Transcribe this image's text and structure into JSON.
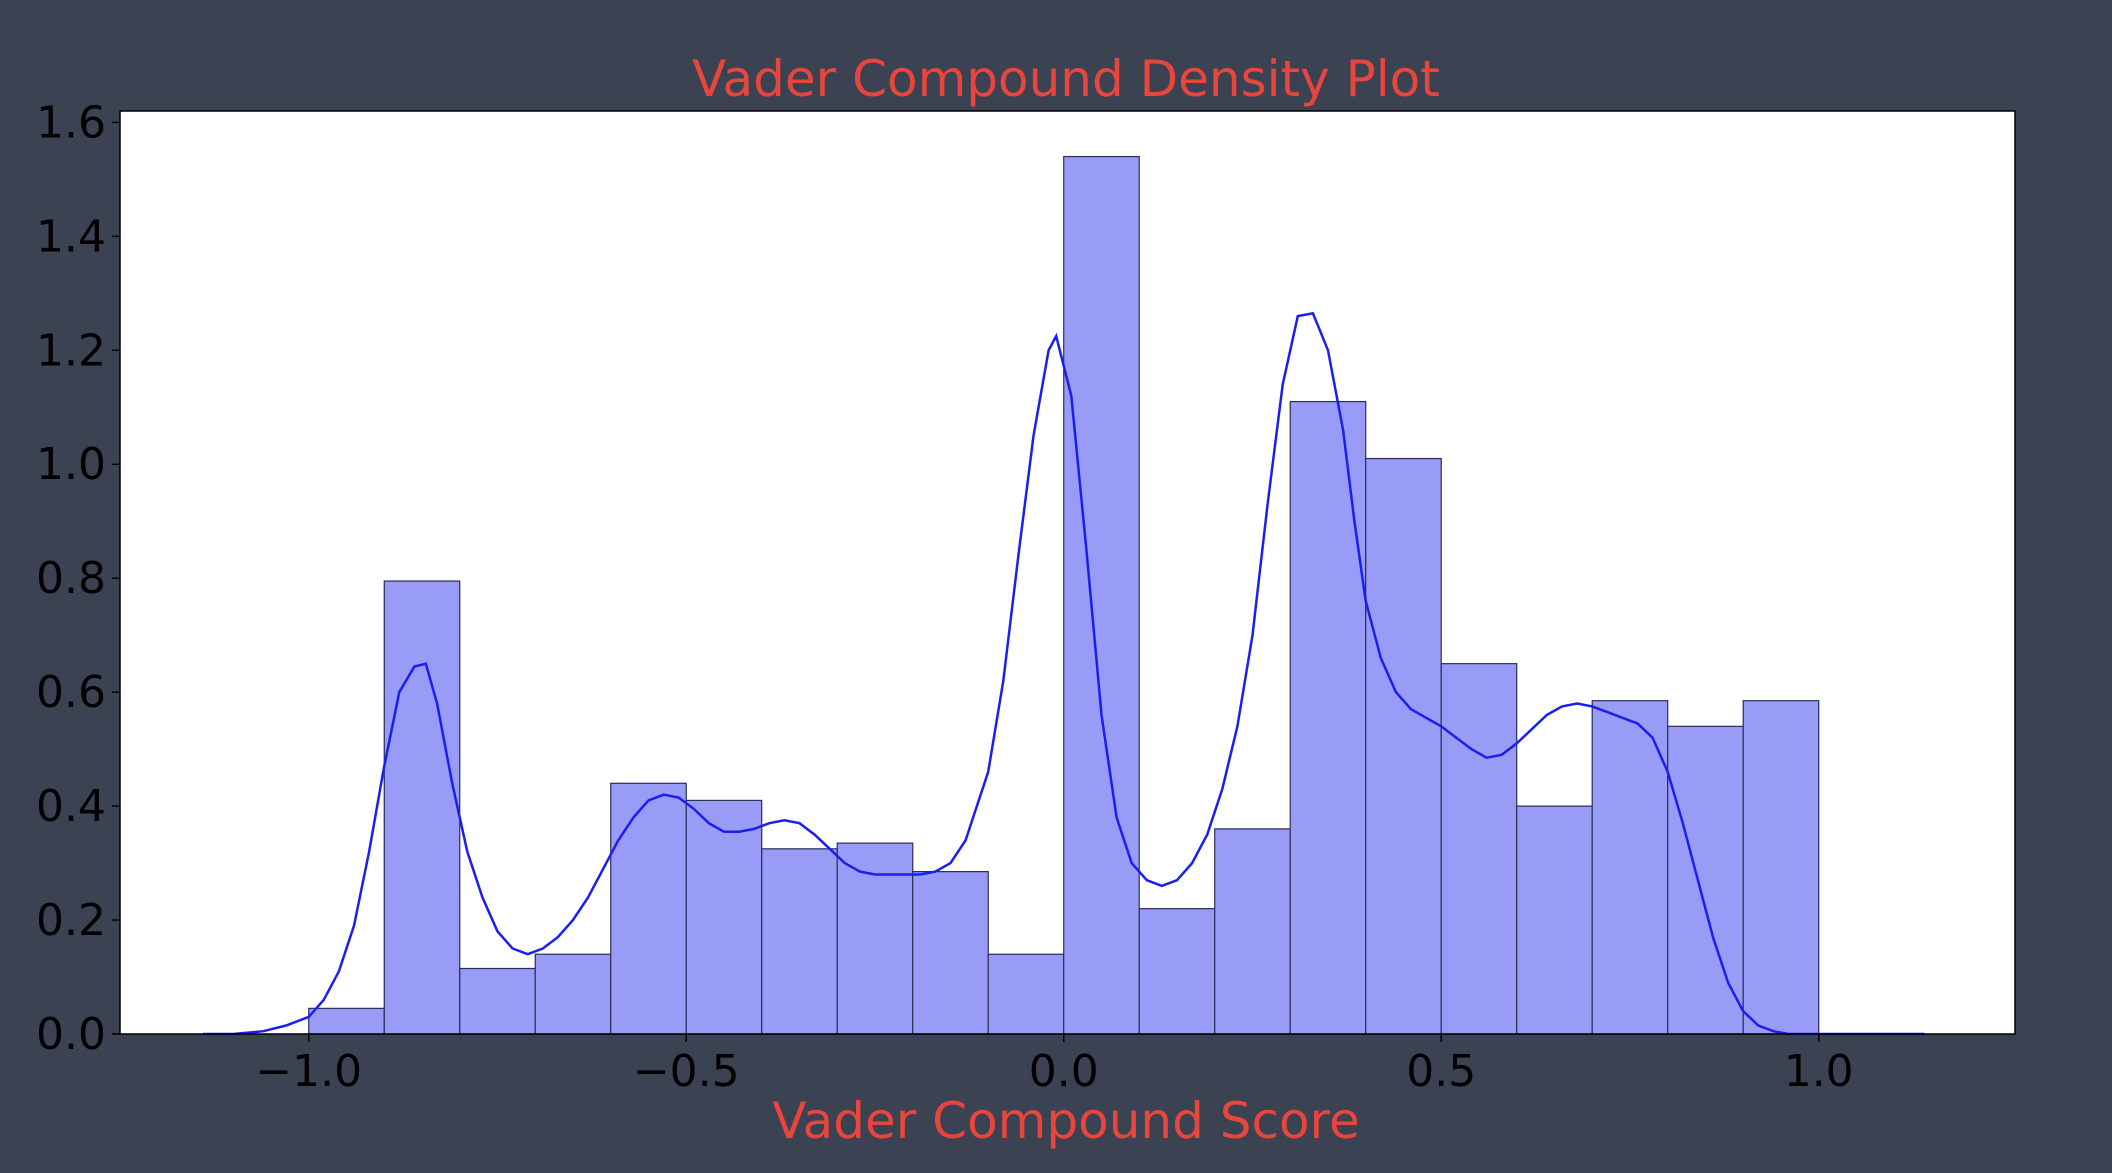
{
  "chart_data": {
    "type": "bar",
    "title": "Vader Compound Density Plot",
    "xlabel": "Vader Compound Score",
    "ylabel": "",
    "xlim": [
      -1.25,
      1.26
    ],
    "ylim": [
      0.0,
      1.62
    ],
    "xticks": [
      -1.0,
      -0.5,
      0.0,
      0.5,
      1.0
    ],
    "xtick_labels": [
      "−1.0",
      "−0.5",
      "0.0",
      "0.5",
      "1.0"
    ],
    "yticks": [
      0.0,
      0.2,
      0.4,
      0.6,
      0.8,
      1.0,
      1.2,
      1.4,
      1.6
    ],
    "ytick_labels": [
      "0.0",
      "0.2",
      "0.4",
      "0.6",
      "0.8",
      "1.0",
      "1.2",
      "1.4",
      "1.6"
    ],
    "grid": false,
    "histogram": {
      "bin_edges": [
        -1.0,
        -0.9,
        -0.8,
        -0.7,
        -0.6,
        -0.5,
        -0.4,
        -0.3,
        -0.2,
        -0.1,
        0.0,
        0.1,
        0.2,
        0.3,
        0.4,
        0.5,
        0.6,
        0.7,
        0.8,
        0.9,
        1.0
      ],
      "density": [
        0.045,
        0.795,
        0.115,
        0.14,
        0.44,
        0.41,
        0.325,
        0.335,
        0.285,
        0.14,
        1.54,
        0.22,
        0.36,
        1.11,
        1.01,
        0.65,
        0.4,
        0.585,
        0.54,
        0.585
      ]
    },
    "kde": {
      "x": [
        -1.14,
        -1.1,
        -1.06,
        -1.03,
        -1.0,
        -0.98,
        -0.96,
        -0.94,
        -0.92,
        -0.9,
        -0.88,
        -0.86,
        -0.845,
        -0.83,
        -0.81,
        -0.79,
        -0.77,
        -0.75,
        -0.73,
        -0.71,
        -0.69,
        -0.67,
        -0.65,
        -0.63,
        -0.61,
        -0.59,
        -0.57,
        -0.55,
        -0.53,
        -0.51,
        -0.49,
        -0.47,
        -0.45,
        -0.43,
        -0.41,
        -0.39,
        -0.37,
        -0.35,
        -0.33,
        -0.31,
        -0.29,
        -0.27,
        -0.25,
        -0.23,
        -0.21,
        -0.19,
        -0.17,
        -0.15,
        -0.13,
        -0.12,
        -0.1,
        -0.08,
        -0.06,
        -0.04,
        -0.02,
        -0.01,
        0.01,
        0.03,
        0.05,
        0.07,
        0.09,
        0.11,
        0.13,
        0.15,
        0.17,
        0.19,
        0.21,
        0.23,
        0.25,
        0.27,
        0.29,
        0.31,
        0.33,
        0.35,
        0.37,
        0.385,
        0.4,
        0.42,
        0.44,
        0.46,
        0.48,
        0.5,
        0.52,
        0.54,
        0.56,
        0.58,
        0.6,
        0.62,
        0.64,
        0.66,
        0.68,
        0.7,
        0.72,
        0.74,
        0.76,
        0.78,
        0.8,
        0.82,
        0.84,
        0.86,
        0.88,
        0.9,
        0.92,
        0.94,
        0.96,
        0.98,
        1.0,
        1.02,
        1.04,
        1.06,
        1.08,
        1.1,
        1.12,
        1.14
      ],
      "y": [
        0.0,
        0.0,
        0.005,
        0.015,
        0.03,
        0.06,
        0.11,
        0.19,
        0.32,
        0.47,
        0.6,
        0.645,
        0.65,
        0.58,
        0.44,
        0.32,
        0.24,
        0.18,
        0.15,
        0.14,
        0.15,
        0.17,
        0.2,
        0.24,
        0.29,
        0.34,
        0.38,
        0.41,
        0.42,
        0.415,
        0.395,
        0.37,
        0.355,
        0.355,
        0.36,
        0.37,
        0.375,
        0.37,
        0.35,
        0.325,
        0.3,
        0.285,
        0.28,
        0.28,
        0.28,
        0.28,
        0.285,
        0.3,
        0.34,
        0.38,
        0.46,
        0.62,
        0.84,
        1.05,
        1.2,
        1.225,
        1.12,
        0.85,
        0.56,
        0.38,
        0.3,
        0.27,
        0.26,
        0.27,
        0.3,
        0.35,
        0.43,
        0.54,
        0.7,
        0.93,
        1.14,
        1.26,
        1.265,
        1.2,
        1.06,
        0.9,
        0.76,
        0.66,
        0.6,
        0.57,
        0.555,
        0.54,
        0.52,
        0.5,
        0.485,
        0.49,
        0.51,
        0.535,
        0.56,
        0.575,
        0.58,
        0.575,
        0.565,
        0.555,
        0.545,
        0.52,
        0.46,
        0.37,
        0.27,
        0.17,
        0.09,
        0.04,
        0.015,
        0.005,
        0.0,
        0.0,
        0.0,
        0.0,
        0.0,
        0.0,
        0.0,
        0.0,
        0.0,
        0.0
      ]
    },
    "colors": {
      "background": "#3b4252",
      "plot_area": "#ffffff",
      "bar_fill": "#989cf7",
      "bar_edge": "#2b2d57",
      "kde_line": "#1a1ff0",
      "title": "#e8453c",
      "xlabel": "#e8453c",
      "ticks": "#000000"
    }
  }
}
